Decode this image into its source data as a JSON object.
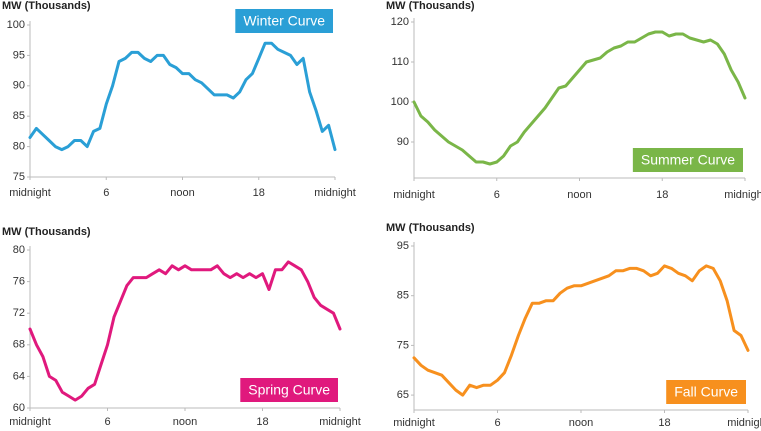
{
  "chart_data": [
    {
      "type": "line",
      "title": "Winter Curve",
      "y_label": "MW (Thousands)",
      "color": "#2a9fd6",
      "badge_position": "top-right",
      "x": [
        0,
        0.5,
        1,
        1.5,
        2,
        2.5,
        3,
        3.5,
        4,
        4.5,
        5,
        5.5,
        6,
        6.5,
        7,
        7.5,
        8,
        8.5,
        9,
        9.5,
        10,
        10.5,
        11,
        11.5,
        12,
        12.5,
        13,
        13.5,
        14,
        14.5,
        15,
        15.5,
        16,
        16.5,
        17,
        17.5,
        18,
        18.5,
        19,
        19.5,
        20,
        20.5,
        21,
        21.5,
        22,
        22.5,
        23,
        23.5,
        24
      ],
      "values": [
        81.5,
        83,
        82,
        81,
        80,
        79.5,
        80,
        81,
        81,
        80,
        82.5,
        83,
        87,
        90,
        94,
        94.5,
        95.5,
        95.5,
        94.5,
        94,
        95,
        95,
        93.5,
        93,
        92,
        92,
        91,
        90.5,
        89.5,
        88.5,
        88.5,
        88.5,
        88,
        89,
        91,
        92,
        94.5,
        97,
        97,
        96,
        95.5,
        95,
        93.5,
        94.5,
        89,
        86,
        82.5,
        83.5,
        79.5
      ],
      "xlim": [
        0,
        24
      ],
      "xticks": [
        {
          "value": 0,
          "label": "midnight"
        },
        6,
        {
          "value": 12,
          "label": "noon"
        },
        18,
        {
          "value": 24,
          "label": "midnight"
        }
      ],
      "ylim": [
        75,
        100
      ],
      "yticks": [
        75,
        80,
        85,
        90,
        95,
        100
      ]
    },
    {
      "type": "line",
      "title": "Summer Curve",
      "y_label": "MW (Thousands)",
      "color": "#7ab648",
      "badge_position": "bottom-right",
      "x": [
        0,
        0.5,
        1,
        1.5,
        2,
        2.5,
        3,
        3.5,
        4,
        4.5,
        5,
        5.5,
        6,
        6.5,
        7,
        7.5,
        8,
        8.5,
        9,
        9.5,
        10,
        10.5,
        11,
        11.5,
        12,
        12.5,
        13,
        13.5,
        14,
        14.5,
        15,
        15.5,
        16,
        16.5,
        17,
        17.5,
        18,
        18.5,
        19,
        19.5,
        20,
        20.5,
        21,
        21.5,
        22,
        22.5,
        23,
        23.5,
        24
      ],
      "values": [
        100,
        96.5,
        95,
        93,
        91.5,
        90,
        89,
        88,
        86.5,
        85,
        85,
        84.5,
        85,
        86.5,
        89,
        90,
        92.5,
        94.5,
        96.5,
        98.5,
        101,
        103.5,
        104,
        106,
        108,
        110,
        110.5,
        111,
        112.5,
        113.5,
        114,
        115,
        115,
        116,
        117,
        117.5,
        117.5,
        116.5,
        117,
        117,
        116,
        115.5,
        115,
        115.5,
        114.5,
        112,
        108,
        105,
        101
      ],
      "xlim": [
        0,
        24
      ],
      "xticks": [
        {
          "value": 0,
          "label": "midnight"
        },
        6,
        {
          "value": 12,
          "label": "noon"
        },
        18,
        {
          "value": 24,
          "label": "midnight"
        }
      ],
      "ylim": [
        81,
        120
      ],
      "yticks": [
        90,
        100,
        110,
        120
      ]
    },
    {
      "type": "line",
      "title": "Spring Curve",
      "y_label": "MW (Thousands)",
      "color": "#e0197d",
      "badge_position": "bottom-right",
      "x": [
        0,
        0.5,
        1,
        1.5,
        2,
        2.5,
        3,
        3.5,
        4,
        4.5,
        5,
        5.5,
        6,
        6.5,
        7,
        7.5,
        8,
        8.5,
        9,
        9.5,
        10,
        10.5,
        11,
        11.5,
        12,
        12.5,
        13,
        13.5,
        14,
        14.5,
        15,
        15.5,
        16,
        16.5,
        17,
        17.5,
        18,
        18.5,
        19,
        19.5,
        20,
        20.5,
        21,
        21.5,
        22,
        22.5,
        23,
        23.5,
        24
      ],
      "values": [
        70,
        68,
        66.5,
        64,
        63.5,
        62,
        61.5,
        61,
        61.5,
        62.5,
        63,
        65.5,
        68,
        71.5,
        73.5,
        75.5,
        76.5,
        76.5,
        76.5,
        77,
        77.5,
        77,
        78,
        77.5,
        78,
        77.5,
        77.5,
        77.5,
        77.5,
        78,
        77,
        76.5,
        77,
        76.5,
        77,
        76.5,
        77,
        75,
        77.5,
        77.5,
        78.5,
        78,
        77.5,
        76,
        74,
        73,
        72.5,
        72,
        70
      ],
      "xlim": [
        0,
        24
      ],
      "xticks": [
        {
          "value": 0,
          "label": "midnight"
        },
        6,
        {
          "value": 12,
          "label": "noon"
        },
        18,
        {
          "value": 24,
          "label": "midnight"
        }
      ],
      "ylim": [
        60,
        80
      ],
      "yticks": [
        60,
        64,
        68,
        72,
        76,
        80
      ]
    },
    {
      "type": "line",
      "title": "Fall Curve",
      "y_label": "MW (Thousands)",
      "color": "#f7901e",
      "badge_position": "bottom-right",
      "x": [
        0,
        0.5,
        1,
        1.5,
        2,
        2.5,
        3,
        3.5,
        4,
        4.5,
        5,
        5.5,
        6,
        6.5,
        7,
        7.5,
        8,
        8.5,
        9,
        9.5,
        10,
        10.5,
        11,
        11.5,
        12,
        12.5,
        13,
        13.5,
        14,
        14.5,
        15,
        15.5,
        16,
        16.5,
        17,
        17.5,
        18,
        18.5,
        19,
        19.5,
        20,
        20.5,
        21,
        21.5,
        22,
        22.5,
        23,
        23.5,
        24
      ],
      "values": [
        72.5,
        71,
        70,
        69.5,
        69,
        67.5,
        66,
        65,
        67,
        66.5,
        67,
        67,
        68,
        69.5,
        73,
        77,
        80.5,
        83.5,
        83.5,
        84,
        84,
        85.5,
        86.5,
        87,
        87,
        87.5,
        88,
        88.5,
        89,
        90,
        90,
        90.5,
        90.5,
        90,
        89,
        89.5,
        91,
        90.5,
        89.5,
        89,
        88,
        90,
        91,
        90.5,
        88,
        84,
        78,
        77,
        74
      ],
      "xlim": [
        0,
        24
      ],
      "xticks": [
        {
          "value": 0,
          "label": "midnight"
        },
        6,
        {
          "value": 12,
          "label": "noon"
        },
        18,
        {
          "value": 24,
          "label": "midnight"
        }
      ],
      "ylim": [
        62,
        95
      ],
      "yticks": [
        65,
        75,
        85,
        95
      ]
    }
  ]
}
